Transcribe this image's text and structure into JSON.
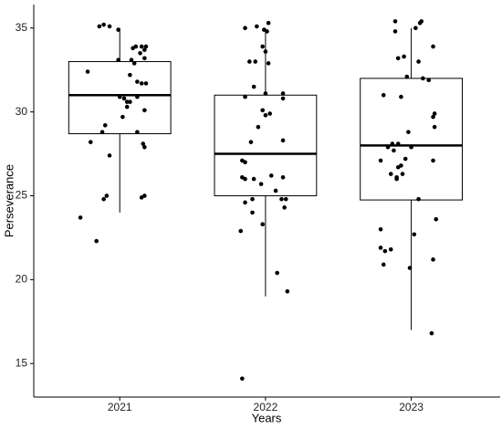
{
  "chart_data": {
    "type": "box",
    "x_label": "Years",
    "y_label": "Perseverance",
    "xlim": [
      0.41,
      3.61
    ],
    "xticks": [
      {
        "value": 1,
        "label": "2021"
      },
      {
        "value": 2,
        "label": "2022"
      },
      {
        "value": 3,
        "label": "2023"
      }
    ],
    "ylim": [
      13.0,
      36.4
    ],
    "yticks": [
      15,
      20,
      25,
      30,
      35
    ],
    "boxes": [
      {
        "low": 24.0,
        "q1": 28.7,
        "median": 31.0,
        "q3": 33.0,
        "high": 35.0
      },
      {
        "low": 19.0,
        "q1": 25.0,
        "median": 27.5,
        "q3": 31.0,
        "high": 35.0
      },
      {
        "low": 17.0,
        "q1": 24.75,
        "median": 28.0,
        "q3": 32.0,
        "high": 35.0
      }
    ],
    "points": {
      "color": "#000000",
      "x": [
        0.86,
        0.89,
        0.93,
        0.99,
        1.15,
        1.09,
        1.11,
        1.17,
        1.18,
        1.14,
        1.08,
        1.1,
        0.99,
        1.17,
        0.78,
        1.07,
        1.12,
        1.15,
        1.18,
        1.0,
        1.03,
        1.05,
        1.07,
        1.12,
        1.05,
        1.17,
        1.02,
        0.9,
        0.88,
        1.12,
        0.8,
        1.16,
        1.17,
        0.93,
        0.91,
        0.89,
        1.15,
        1.17,
        0.73,
        0.84,
        1.86,
        1.94,
        1.99,
        2.02,
        2.01,
        1.98,
        2.0,
        2.02,
        1.89,
        1.93,
        1.92,
        1.86,
        2.0,
        2.12,
        2.12,
        1.98,
        2.0,
        2.03,
        1.95,
        1.9,
        2.12,
        1.84,
        1.86,
        1.84,
        1.86,
        1.92,
        2.04,
        2.12,
        1.97,
        2.07,
        1.91,
        2.11,
        2.14,
        1.86,
        2.13,
        1.91,
        1.98,
        1.83,
        2.08,
        2.15,
        1.84,
        2.89,
        2.89,
        3.06,
        3.07,
        3.03,
        3.15,
        2.95,
        2.91,
        3.05,
        2.97,
        3.08,
        3.12,
        2.81,
        2.93,
        3.16,
        3.15,
        3.16,
        2.98,
        2.87,
        2.91,
        2.84,
        2.88,
        3.0,
        2.79,
        2.96,
        3.15,
        2.93,
        2.86,
        2.9,
        2.9,
        2.94,
        2.91,
        3.05,
        2.79,
        3.17,
        3.02,
        2.79,
        2.82,
        2.86,
        3.15,
        2.81,
        2.99,
        3.14
      ],
      "y": [
        35.1,
        35.2,
        35.1,
        34.9,
        33.9,
        33.8,
        33.9,
        33.7,
        33.9,
        33.5,
        33.1,
        32.9,
        33.1,
        33.2,
        32.4,
        32.2,
        31.8,
        31.7,
        31.7,
        30.9,
        30.8,
        30.6,
        30.6,
        30.9,
        30.3,
        30.1,
        29.7,
        29.2,
        28.8,
        28.8,
        28.2,
        28.1,
        27.9,
        27.4,
        25.0,
        24.8,
        24.9,
        25.0,
        23.7,
        22.3,
        35.0,
        35.1,
        34.9,
        35.3,
        34.8,
        33.9,
        33.6,
        32.9,
        33.0,
        33.0,
        31.5,
        30.9,
        31.1,
        31.1,
        30.8,
        30.1,
        29.8,
        29.9,
        29.1,
        28.2,
        28.3,
        27.1,
        27.0,
        26.1,
        26.0,
        26.0,
        26.2,
        26.1,
        25.7,
        25.3,
        24.8,
        24.8,
        24.8,
        24.6,
        24.3,
        24.0,
        23.3,
        22.9,
        20.4,
        19.3,
        14.1,
        35.4,
        34.8,
        35.3,
        35.4,
        35.0,
        33.9,
        33.3,
        33.2,
        33.0,
        32.1,
        32.0,
        31.9,
        31.0,
        30.9,
        29.9,
        29.7,
        29.1,
        28.8,
        28.1,
        28.1,
        27.9,
        27.7,
        27.9,
        27.1,
        27.2,
        27.1,
        26.8,
        26.3,
        26.1,
        26.0,
        26.3,
        26.7,
        24.8,
        23.0,
        23.6,
        22.7,
        21.9,
        21.7,
        21.8,
        21.2,
        20.9,
        20.7,
        16.8
      ]
    }
  }
}
